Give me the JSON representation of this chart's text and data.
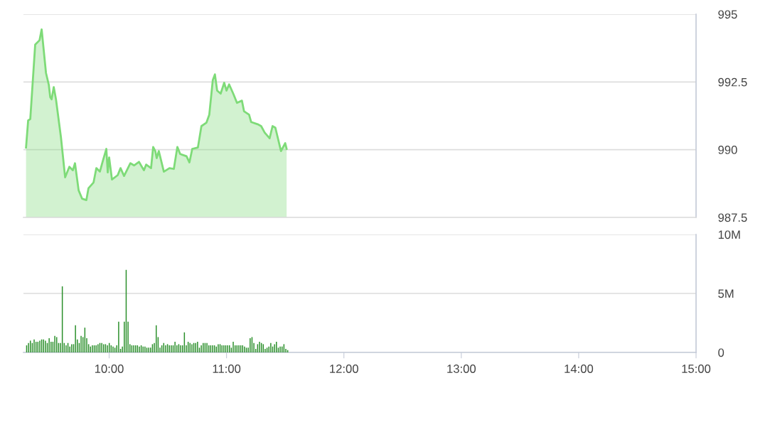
{
  "chart_data": [
    {
      "type": "area",
      "color": "#7edb78",
      "xlim": [
        9.27,
        15
      ],
      "ylim": [
        987.5,
        995
      ],
      "yticks": [
        995,
        992.5,
        990,
        987.5
      ],
      "grid": "y",
      "tick_labels": "y",
      "x": [
        9.292,
        9.31,
        9.328,
        9.37,
        9.407,
        9.425,
        9.462,
        9.486,
        9.498,
        9.51,
        9.528,
        9.547,
        9.589,
        9.625,
        9.661,
        9.691,
        9.709,
        9.74,
        9.77,
        9.806,
        9.824,
        9.867,
        9.891,
        9.921,
        9.946,
        9.976,
        9.988,
        10.0,
        10.024,
        10.073,
        10.097,
        10.127,
        10.181,
        10.212,
        10.254,
        10.296,
        10.315,
        10.357,
        10.375,
        10.393,
        10.405,
        10.423,
        10.466,
        10.514,
        10.551,
        10.581,
        10.605,
        10.659,
        10.684,
        10.708,
        10.756,
        10.786,
        10.829,
        10.853,
        10.883,
        10.901,
        10.92,
        10.95,
        10.98,
        11.0,
        11.022,
        11.059,
        11.089,
        11.131,
        11.149,
        11.192,
        11.21,
        11.265,
        11.295,
        11.325,
        11.367,
        11.392,
        11.416,
        11.464,
        11.5,
        11.512
      ],
      "values": [
        990.08,
        991.08,
        991.13,
        993.88,
        994.04,
        994.44,
        992.83,
        992.39,
        991.94,
        991.86,
        992.31,
        991.86,
        990.47,
        988.98,
        989.37,
        989.24,
        989.5,
        988.5,
        988.19,
        988.14,
        988.58,
        988.79,
        989.32,
        989.19,
        989.58,
        990.03,
        989.16,
        989.71,
        988.9,
        989.06,
        989.32,
        989.03,
        989.5,
        989.42,
        989.55,
        989.24,
        989.45,
        989.32,
        990.1,
        989.95,
        989.69,
        989.95,
        989.19,
        989.32,
        989.29,
        990.1,
        989.84,
        989.76,
        989.53,
        990.03,
        990.08,
        990.87,
        991.0,
        991.29,
        992.57,
        992.78,
        992.18,
        992.07,
        992.47,
        992.18,
        992.41,
        992.05,
        991.73,
        991.81,
        991.42,
        991.29,
        991.02,
        990.94,
        990.87,
        990.63,
        990.42,
        990.87,
        990.81,
        989.95,
        990.24,
        990.03
      ]
    },
    {
      "type": "bar",
      "color": "#2a8f2a",
      "xlim": [
        9.27,
        15
      ],
      "ylim": [
        0,
        10
      ],
      "yticks": [
        {
          "value": 10,
          "label": "10M"
        },
        {
          "value": 5,
          "label": "5M"
        },
        0
      ],
      "xticks": [
        {
          "value": 10,
          "label": "10:00"
        },
        {
          "value": 11,
          "label": "11:00"
        },
        {
          "value": 12,
          "label": "12:00"
        },
        {
          "value": 13,
          "label": "13:00"
        },
        {
          "value": 14,
          "label": "14:00"
        },
        {
          "value": 15,
          "label": "15:00"
        }
      ],
      "grid": "y",
      "x": [
        9.297,
        9.313,
        9.329,
        9.345,
        9.361,
        9.377,
        9.393,
        9.409,
        9.425,
        9.441,
        9.457,
        9.473,
        9.489,
        9.505,
        9.521,
        9.537,
        9.553,
        9.569,
        9.585,
        9.601,
        9.617,
        9.633,
        9.649,
        9.665,
        9.681,
        9.697,
        9.713,
        9.729,
        9.745,
        9.761,
        9.777,
        9.793,
        9.809,
        9.825,
        9.841,
        9.857,
        9.873,
        9.889,
        9.905,
        9.921,
        9.937,
        9.953,
        9.969,
        9.985,
        10.001,
        10.017,
        10.033,
        10.049,
        10.065,
        10.081,
        10.097,
        10.113,
        10.129,
        10.145,
        10.161,
        10.177,
        10.193,
        10.209,
        10.225,
        10.241,
        10.257,
        10.273,
        10.289,
        10.305,
        10.321,
        10.337,
        10.353,
        10.369,
        10.385,
        10.401,
        10.417,
        10.433,
        10.449,
        10.465,
        10.481,
        10.497,
        10.513,
        10.529,
        10.545,
        10.561,
        10.577,
        10.593,
        10.609,
        10.625,
        10.641,
        10.657,
        10.673,
        10.689,
        10.705,
        10.721,
        10.737,
        10.753,
        10.769,
        10.785,
        10.801,
        10.817,
        10.833,
        10.849,
        10.865,
        10.881,
        10.897,
        10.913,
        10.929,
        10.945,
        10.961,
        10.977,
        10.993,
        11.009,
        11.025,
        11.041,
        11.057,
        11.073,
        11.089,
        11.105,
        11.121,
        11.137,
        11.153,
        11.169,
        11.185,
        11.201,
        11.217,
        11.233,
        11.249,
        11.265,
        11.281,
        11.297,
        11.313,
        11.329,
        11.345,
        11.361,
        11.377,
        11.393,
        11.409,
        11.425,
        11.441,
        11.457,
        11.473,
        11.489,
        11.505,
        11.521
      ],
      "values": [
        0.6,
        0.8,
        1.0,
        0.8,
        1.1,
        0.9,
        0.9,
        1.0,
        1.1,
        1.1,
        1.0,
        0.8,
        1.2,
        0.9,
        0.9,
        1.4,
        1.3,
        0.8,
        0.8,
        5.6,
        0.8,
        0.6,
        0.8,
        0.5,
        0.7,
        0.7,
        2.3,
        1.1,
        0.8,
        1.4,
        1.3,
        2.1,
        1.2,
        0.7,
        0.5,
        0.6,
        0.6,
        0.6,
        0.7,
        0.8,
        0.8,
        0.7,
        0.7,
        0.6,
        0.8,
        0.6,
        0.5,
        0.4,
        0.6,
        2.6,
        0.3,
        0.5,
        2.6,
        7.0,
        2.6,
        0.7,
        0.6,
        0.6,
        0.6,
        0.6,
        0.5,
        0.6,
        0.5,
        0.5,
        0.4,
        0.4,
        0.4,
        0.7,
        0.8,
        2.3,
        1.3,
        0.4,
        0.6,
        0.8,
        0.6,
        0.7,
        0.6,
        0.6,
        0.6,
        0.9,
        0.6,
        0.7,
        0.6,
        0.6,
        1.7,
        0.6,
        0.9,
        0.8,
        0.7,
        0.8,
        0.8,
        0.9,
        0.4,
        0.6,
        0.8,
        0.8,
        0.8,
        0.6,
        0.6,
        0.6,
        0.6,
        0.5,
        0.7,
        0.7,
        0.6,
        0.6,
        0.6,
        0.6,
        0.6,
        0.4,
        0.9,
        0.6,
        0.6,
        0.6,
        0.6,
        0.6,
        0.5,
        0.4,
        0.4,
        1.2,
        1.3,
        0.8,
        0.3,
        0.7,
        0.9,
        0.8,
        0.7,
        0.3,
        0.4,
        0.5,
        0.8,
        0.5,
        0.7,
        0.9,
        0.4,
        0.5,
        0.5,
        0.7,
        0.3,
        0.2
      ]
    }
  ]
}
